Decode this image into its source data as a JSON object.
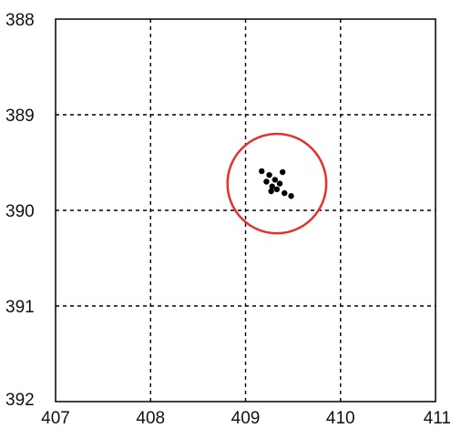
{
  "chart_data": {
    "type": "scatter",
    "title": "",
    "xlabel": "",
    "ylabel": "",
    "xlim": [
      407,
      411
    ],
    "ylim": [
      388,
      392
    ],
    "y_inverted": true,
    "grid": true,
    "grid_style": "dashed",
    "x_ticks": [
      407,
      408,
      409,
      410,
      411
    ],
    "y_ticks": [
      388,
      389,
      390,
      391,
      392
    ],
    "x_tick_labels": [
      "407",
      "408",
      "409",
      "410",
      "411"
    ],
    "y_tick_labels": [
      "388",
      "389",
      "390",
      "391",
      "392"
    ],
    "series": [
      {
        "color": "#000000",
        "points": [
          [
            409.17,
            389.59
          ],
          [
            409.25,
            389.63
          ],
          [
            409.39,
            389.6
          ],
          [
            409.22,
            389.7
          ],
          [
            409.31,
            389.68
          ],
          [
            409.36,
            389.72
          ],
          [
            409.28,
            389.75
          ],
          [
            409.33,
            389.78
          ],
          [
            409.27,
            389.8
          ],
          [
            409.41,
            389.82
          ],
          [
            409.48,
            389.85
          ]
        ]
      }
    ],
    "annotations": [
      {
        "type": "circle",
        "center": [
          409.33,
          389.72
        ],
        "radius": 0.52,
        "color": "#e8302a"
      }
    ]
  }
}
